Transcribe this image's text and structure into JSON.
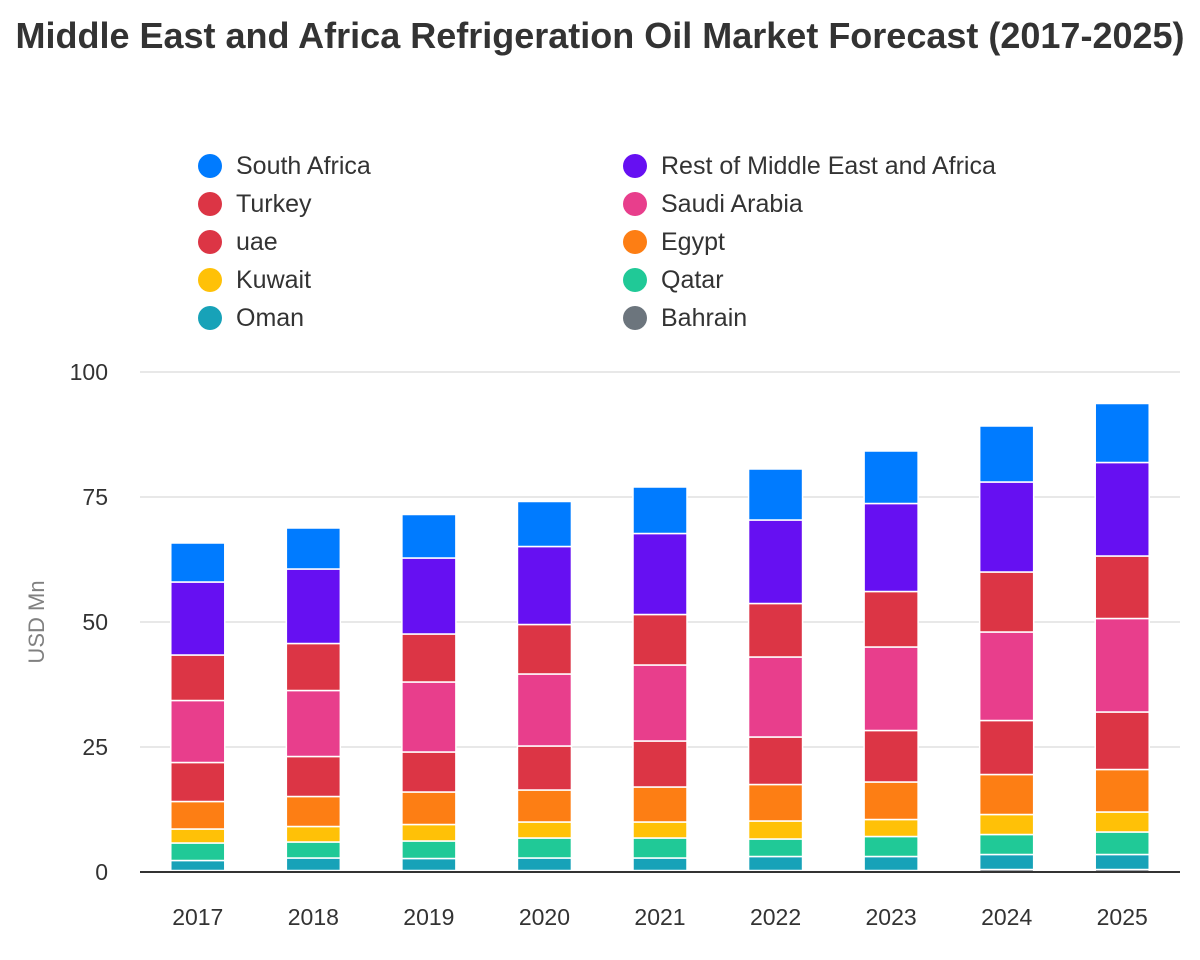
{
  "chart_data": {
    "type": "bar",
    "stacked": true,
    "title": "Middle East and Africa Refrigeration Oil Market Forecast (2017-2025)",
    "ylabel": "USD Mn",
    "xlabel": "",
    "ylim": [
      0,
      100
    ],
    "yticks": [
      0,
      25,
      50,
      75,
      100
    ],
    "grid": true,
    "legend_position": "top",
    "categories": [
      "2017",
      "2018",
      "2019",
      "2020",
      "2021",
      "2022",
      "2023",
      "2024",
      "2025"
    ],
    "series": [
      {
        "name": "Bahrain",
        "color": "#6c757d",
        "values": [
          0.3,
          0.3,
          0.3,
          0.3,
          0.3,
          0.3,
          0.3,
          0.5,
          0.5
        ]
      },
      {
        "name": "Oman",
        "color": "#17a2b8",
        "values": [
          2.0,
          2.5,
          2.4,
          2.5,
          2.5,
          2.8,
          2.8,
          3.0,
          3.0
        ]
      },
      {
        "name": "Qatar",
        "color": "#20c997",
        "values": [
          3.5,
          3.2,
          3.5,
          4.0,
          4.0,
          3.5,
          4.0,
          4.0,
          4.5
        ]
      },
      {
        "name": "Kuwait",
        "color": "#ffc107",
        "values": [
          2.8,
          3.1,
          3.3,
          3.2,
          3.2,
          3.6,
          3.4,
          4.0,
          4.0
        ]
      },
      {
        "name": "Egypt",
        "color": "#fd7e14",
        "values": [
          5.5,
          6.0,
          6.5,
          6.4,
          7.0,
          7.3,
          7.5,
          8.0,
          8.5
        ]
      },
      {
        "name": "uae",
        "color": "#dc3545",
        "values": [
          7.8,
          8.0,
          8.0,
          8.8,
          9.2,
          9.5,
          10.3,
          10.8,
          11.5
        ]
      },
      {
        "name": "Saudi Arabia",
        "color": "#e83e8c",
        "values": [
          12.4,
          13.2,
          14.0,
          14.4,
          15.2,
          16.0,
          16.7,
          17.7,
          18.7
        ]
      },
      {
        "name": "Turkey",
        "color": "#dc3545",
        "values": [
          9.1,
          9.4,
          9.6,
          9.9,
          10.1,
          10.7,
          11.1,
          12.0,
          12.5
        ]
      },
      {
        "name": "Rest of Middle East and Africa",
        "color": "#6610f2",
        "values": [
          14.6,
          14.9,
          15.2,
          15.6,
          16.2,
          16.7,
          17.6,
          18.0,
          18.7
        ]
      },
      {
        "name": "South Africa",
        "color": "#007bff",
        "values": [
          7.8,
          8.2,
          8.7,
          9.0,
          9.3,
          10.2,
          10.5,
          11.2,
          11.8
        ]
      }
    ],
    "legend": [
      {
        "name": "South Africa",
        "color": "#007bff"
      },
      {
        "name": "Rest of Middle East and Africa",
        "color": "#6610f2"
      },
      {
        "name": "Turkey",
        "color": "#dc3545"
      },
      {
        "name": "Saudi Arabia",
        "color": "#e83e8c"
      },
      {
        "name": "uae",
        "color": "#dc3545"
      },
      {
        "name": "Egypt",
        "color": "#fd7e14"
      },
      {
        "name": "Kuwait",
        "color": "#ffc107"
      },
      {
        "name": "Qatar",
        "color": "#20c997"
      },
      {
        "name": "Oman",
        "color": "#17a2b8"
      },
      {
        "name": "Bahrain",
        "color": "#6c757d"
      }
    ]
  }
}
